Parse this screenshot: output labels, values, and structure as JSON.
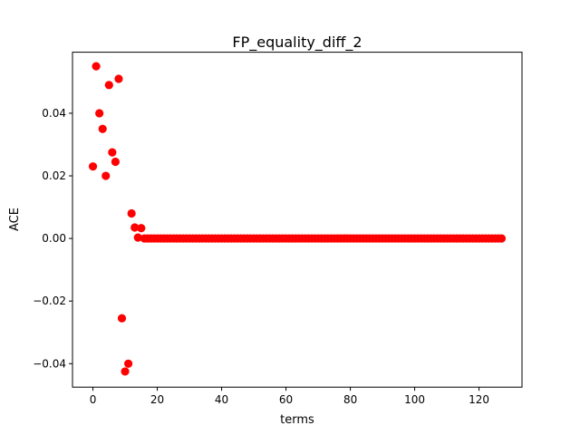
{
  "chart_data": {
    "type": "scatter",
    "title": "FP_equality_diff_2",
    "xlabel": "terms",
    "ylabel": "ACE",
    "xlim": [
      -6.35,
      133.35
    ],
    "ylim": [
      -0.0475,
      0.0595
    ],
    "xticks": [
      0,
      20,
      40,
      60,
      80,
      100,
      120
    ],
    "yticks": [
      -0.04,
      -0.02,
      0.0,
      0.02,
      0.04
    ],
    "xtick_labels": [
      "0",
      "20",
      "40",
      "60",
      "80",
      "100",
      "120"
    ],
    "ytick_labels": [
      "−0.04",
      "−0.02",
      "0.00",
      "0.02",
      "0.04"
    ],
    "grid": false,
    "legend": "none",
    "series": [
      {
        "color": "#ff0000",
        "x": [
          0,
          1,
          2,
          3,
          4,
          5,
          6,
          7,
          8,
          9,
          10,
          11,
          12,
          13,
          14,
          15,
          16,
          17,
          18,
          19,
          20,
          21,
          22,
          23,
          24,
          25,
          26,
          27,
          28,
          29,
          30,
          31,
          32,
          33,
          34,
          35,
          36,
          37,
          38,
          39,
          40,
          41,
          42,
          43,
          44,
          45,
          46,
          47,
          48,
          49,
          50,
          51,
          52,
          53,
          54,
          55,
          56,
          57,
          58,
          59,
          60,
          61,
          62,
          63,
          64,
          65,
          66,
          67,
          68,
          69,
          70,
          71,
          72,
          73,
          74,
          75,
          76,
          77,
          78,
          79,
          80,
          81,
          82,
          83,
          84,
          85,
          86,
          87,
          88,
          89,
          90,
          91,
          92,
          93,
          94,
          95,
          96,
          97,
          98,
          99,
          100,
          101,
          102,
          103,
          104,
          105,
          106,
          107,
          108,
          109,
          110,
          111,
          112,
          113,
          114,
          115,
          116,
          117,
          118,
          119,
          120,
          121,
          122,
          123,
          124,
          125,
          126,
          127
        ],
        "y": [
          0.023,
          0.055,
          0.04,
          0.035,
          0.02,
          0.049,
          0.0275,
          0.0245,
          0.051,
          -0.0255,
          -0.0425,
          -0.04,
          0.008,
          0.0035,
          0.0003,
          0.0033,
          0,
          0,
          0,
          0,
          0,
          0,
          0,
          0,
          0,
          0,
          0,
          0,
          0,
          0,
          0,
          0,
          0,
          0,
          0,
          0,
          0,
          0,
          0,
          0,
          0,
          0,
          0,
          0,
          0,
          0,
          0,
          0,
          0,
          0,
          0,
          0,
          0,
          0,
          0,
          0,
          0,
          0,
          0,
          0,
          0,
          0,
          0,
          0,
          0,
          0,
          0,
          0,
          0,
          0,
          0,
          0,
          0,
          0,
          0,
          0,
          0,
          0,
          0,
          0,
          0,
          0,
          0,
          0,
          0,
          0,
          0,
          0,
          0,
          0,
          0,
          0,
          0,
          0,
          0,
          0,
          0,
          0,
          0,
          0,
          0,
          0,
          0,
          0,
          0,
          0,
          0,
          0,
          0,
          0,
          0,
          0,
          0,
          0,
          0,
          0,
          0,
          0,
          0,
          0,
          0,
          0,
          0,
          0,
          0,
          0,
          0,
          0
        ]
      }
    ]
  }
}
